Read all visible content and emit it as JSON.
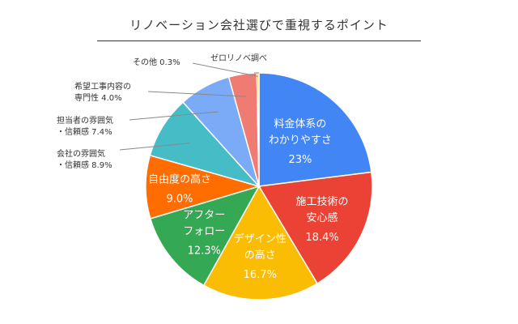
{
  "chart_data": {
    "type": "pie",
    "title": "リノベーション会社選びで重視するポイント",
    "slices": [
      {
        "label_lines": [
          "料金体系の",
          "わかりやすさ"
        ],
        "value": 23,
        "value_label": "23%",
        "color": "#4285F4",
        "placement": "inside"
      },
      {
        "label_lines": [
          "施工技術の",
          "安心感"
        ],
        "value": 18.4,
        "value_label": "18.4%",
        "color": "#EA4335",
        "placement": "inside"
      },
      {
        "label_lines": [
          "デザイン性",
          "の高さ"
        ],
        "value": 16.7,
        "value_label": "16.7%",
        "color": "#FBBC04",
        "placement": "inside"
      },
      {
        "label_lines": [
          "アフター",
          "フォロー"
        ],
        "value": 12.3,
        "value_label": "12.3%",
        "color": "#34A853",
        "placement": "inside"
      },
      {
        "label_lines": [
          "自由度の高さ"
        ],
        "value": 9.0,
        "value_label": "9.0%",
        "color": "#FF6D01",
        "placement": "inside"
      },
      {
        "label_lines": [
          "会社の雰囲気",
          "・信頼感 8.9%"
        ],
        "value": 8.9,
        "color": "#46BDC6",
        "placement": "outside"
      },
      {
        "label_lines": [
          "担当者の雰囲気",
          "・信頼感 7.4%"
        ],
        "value": 7.4,
        "color": "#7BAAF7",
        "placement": "outside"
      },
      {
        "label_lines": [
          "希望工事内容の",
          "専門性 4.0%"
        ],
        "value": 4.0,
        "color": "#F07B72",
        "placement": "outside"
      },
      {
        "label_lines": [
          "その他 0.3%"
        ],
        "value": 0.3,
        "color": "#FCD04F",
        "placement": "outside"
      },
      {
        "label_lines": [
          "ゼロリノベ調べ"
        ],
        "value": 0.0,
        "color": "#71C287",
        "placement": "outside"
      }
    ]
  }
}
